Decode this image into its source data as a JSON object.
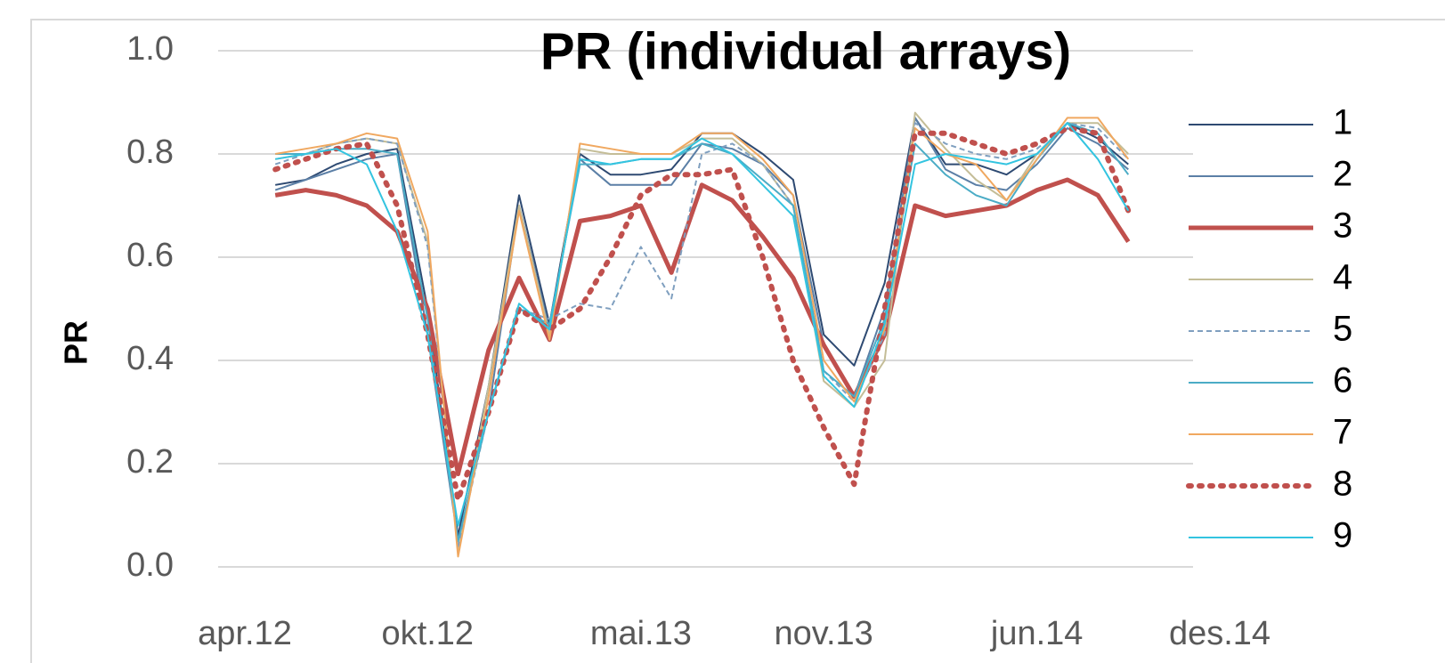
{
  "chart_data": {
    "type": "line",
    "title": "PR (individual arrays)",
    "y_label": "PR",
    "x": [
      "2012-05",
      "2012-06",
      "2012-07",
      "2012-08",
      "2012-09",
      "2012-10",
      "2012-11",
      "2012-12",
      "2013-01",
      "2013-02",
      "2013-03",
      "2013-04",
      "2013-05",
      "2013-06",
      "2013-07",
      "2013-08",
      "2013-09",
      "2013-10",
      "2013-11",
      "2013-12",
      "2014-01",
      "2014-02",
      "2014-03",
      "2014-04",
      "2014-05",
      "2014-06",
      "2014-07",
      "2014-08",
      "2014-09"
    ],
    "xlim": [
      "2012-04",
      "2014-12"
    ],
    "xticks": [
      {
        "value": "2012-04",
        "label": "apr.12"
      },
      {
        "value": "2012-10",
        "label": "okt.12"
      },
      {
        "value": "2013-05",
        "label": "mai.13"
      },
      {
        "value": "2013-11",
        "label": "nov.13"
      },
      {
        "value": "2014-06",
        "label": "jun.14"
      },
      {
        "value": "2014-12",
        "label": "des.14"
      }
    ],
    "ylim": [
      0,
      1
    ],
    "yticks": [
      {
        "value": 0,
        "label": "0.0"
      },
      0.2,
      0.4,
      0.6,
      0.8,
      {
        "value": 1,
        "label": "1.0"
      }
    ],
    "grid": true,
    "legend": "right",
    "series": [
      {
        "name": "1",
        "color": "#2e4a72",
        "width": 2,
        "dash": "solid",
        "values": [
          0.74,
          0.75,
          0.78,
          0.8,
          0.81,
          0.5,
          0.06,
          0.35,
          0.72,
          0.47,
          0.8,
          0.76,
          0.76,
          0.77,
          0.84,
          0.84,
          0.8,
          0.75,
          0.45,
          0.39,
          0.55,
          0.87,
          0.78,
          0.78,
          0.76,
          0.8,
          0.86,
          0.83,
          0.78
        ]
      },
      {
        "name": "2",
        "color": "#5b7fa6",
        "width": 2,
        "dash": "solid",
        "values": [
          0.73,
          0.75,
          0.77,
          0.79,
          0.8,
          0.45,
          0.05,
          0.3,
          0.7,
          0.46,
          0.79,
          0.74,
          0.74,
          0.74,
          0.82,
          0.81,
          0.78,
          0.72,
          0.43,
          0.33,
          0.5,
          0.87,
          0.77,
          0.74,
          0.73,
          0.78,
          0.85,
          0.82,
          0.77
        ]
      },
      {
        "name": "3",
        "color": "#c0504d",
        "width": 5,
        "dash": "solid",
        "values": [
          0.72,
          0.73,
          0.72,
          0.7,
          0.65,
          0.5,
          0.18,
          0.42,
          0.56,
          0.44,
          0.67,
          0.68,
          0.7,
          0.57,
          0.74,
          0.71,
          0.64,
          0.56,
          0.43,
          0.33,
          0.45,
          0.7,
          0.68,
          0.69,
          0.7,
          0.73,
          0.75,
          0.72,
          0.63
        ]
      },
      {
        "name": "4",
        "color": "#c4bd97",
        "width": 2,
        "dash": "solid",
        "values": [
          0.79,
          0.8,
          0.82,
          0.83,
          0.82,
          0.63,
          0.03,
          0.35,
          0.7,
          0.45,
          0.81,
          0.8,
          0.8,
          0.8,
          0.83,
          0.83,
          0.78,
          0.7,
          0.36,
          0.31,
          0.4,
          0.88,
          0.81,
          0.75,
          0.71,
          0.8,
          0.86,
          0.86,
          0.8
        ]
      },
      {
        "name": "5",
        "color": "#7f9fbf",
        "width": 2,
        "dash": "dashed",
        "values": [
          0.78,
          0.8,
          0.82,
          0.83,
          0.82,
          0.62,
          0.04,
          0.3,
          0.5,
          0.48,
          0.51,
          0.5,
          0.62,
          0.52,
          0.8,
          0.82,
          0.78,
          0.7,
          0.38,
          0.32,
          0.45,
          0.86,
          0.82,
          0.8,
          0.79,
          0.81,
          0.86,
          0.85,
          0.79
        ]
      },
      {
        "name": "6",
        "color": "#4bacc6",
        "width": 2,
        "dash": "solid",
        "values": [
          0.8,
          0.8,
          0.81,
          0.81,
          0.8,
          0.48,
          0.05,
          0.3,
          0.5,
          0.47,
          0.78,
          0.78,
          0.79,
          0.79,
          0.82,
          0.8,
          0.75,
          0.7,
          0.38,
          0.33,
          0.48,
          0.82,
          0.76,
          0.72,
          0.7,
          0.79,
          0.86,
          0.84,
          0.76
        ]
      },
      {
        "name": "7",
        "color": "#f0a860",
        "width": 2,
        "dash": "solid",
        "values": [
          0.8,
          0.81,
          0.82,
          0.84,
          0.83,
          0.65,
          0.02,
          0.33,
          0.69,
          0.44,
          0.82,
          0.81,
          0.8,
          0.8,
          0.84,
          0.84,
          0.79,
          0.72,
          0.4,
          0.32,
          0.46,
          0.85,
          0.8,
          0.78,
          0.71,
          0.79,
          0.87,
          0.87,
          0.79
        ]
      },
      {
        "name": "8",
        "color": "#c0504d",
        "width": 6,
        "dash": "dotted",
        "values": [
          0.77,
          0.79,
          0.81,
          0.82,
          0.7,
          0.45,
          0.13,
          0.3,
          0.5,
          0.46,
          0.5,
          0.6,
          0.72,
          0.76,
          0.76,
          0.77,
          0.6,
          0.4,
          0.27,
          0.16,
          0.5,
          0.84,
          0.84,
          0.82,
          0.8,
          0.82,
          0.85,
          0.84,
          0.69
        ]
      },
      {
        "name": "9",
        "color": "#33c4e0",
        "width": 2,
        "dash": "solid",
        "values": [
          0.79,
          0.8,
          0.81,
          0.78,
          0.65,
          0.45,
          0.08,
          0.3,
          0.51,
          0.46,
          0.79,
          0.78,
          0.79,
          0.79,
          0.83,
          0.8,
          0.74,
          0.68,
          0.37,
          0.31,
          0.47,
          0.78,
          0.8,
          0.79,
          0.78,
          0.8,
          0.86,
          0.79,
          0.69
        ]
      }
    ]
  }
}
